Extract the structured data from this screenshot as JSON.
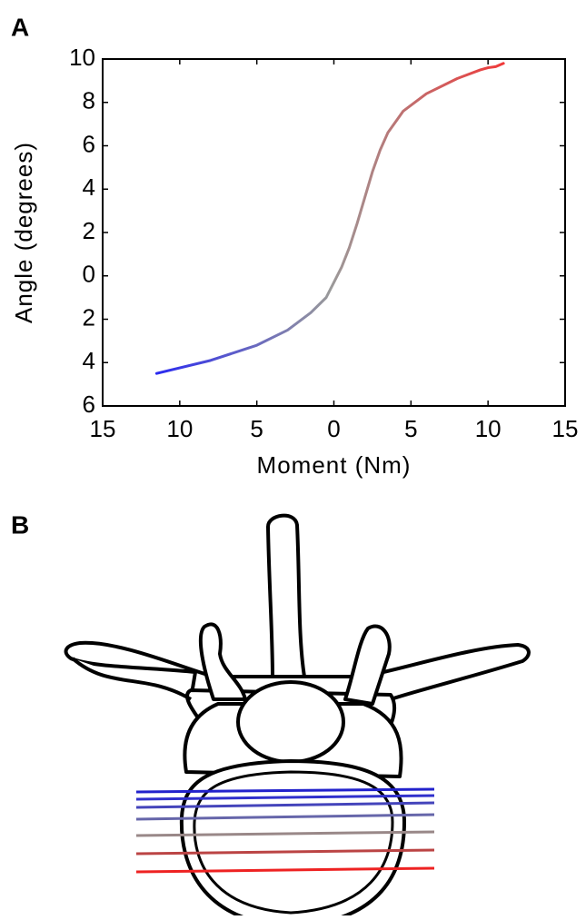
{
  "panels": {
    "a": "A",
    "b": "B"
  },
  "chart_data": {
    "type": "line",
    "xlabel": "Moment (Nm)",
    "ylabel": "Angle (degrees)",
    "xlim": [
      -15,
      15
    ],
    "xticks": [
      {
        "value": -15,
        "label": "15"
      },
      {
        "value": -10,
        "label": "10"
      },
      {
        "value": -5,
        "label": "5"
      },
      0,
      5,
      10,
      15
    ],
    "ylim": [
      -6,
      10
    ],
    "yticks": [
      {
        "value": -6,
        "label": "6"
      },
      {
        "value": -4,
        "label": "4"
      },
      {
        "value": -2,
        "label": "2"
      },
      0,
      2,
      4,
      6,
      8,
      10
    ],
    "grid": false,
    "series": [
      {
        "colors": [
          "#2a2af0",
          "#9a9a9a",
          "#f03a3a"
        ],
        "x": [
          -11.5,
          -8,
          -5,
          -3,
          -1.5,
          -0.5,
          0,
          0.5,
          1,
          1.5,
          2,
          2.5,
          3,
          3.5,
          4.5,
          6,
          8,
          9.5,
          10,
          10.5,
          11
        ],
        "values": [
          -4.5,
          -3.9,
          -3.2,
          -2.5,
          -1.7,
          -1.0,
          -0.3,
          0.4,
          1.3,
          2.4,
          3.6,
          4.8,
          5.8,
          6.6,
          7.6,
          8.4,
          9.1,
          9.5,
          9.6,
          9.65,
          9.8
        ]
      }
    ]
  }
}
